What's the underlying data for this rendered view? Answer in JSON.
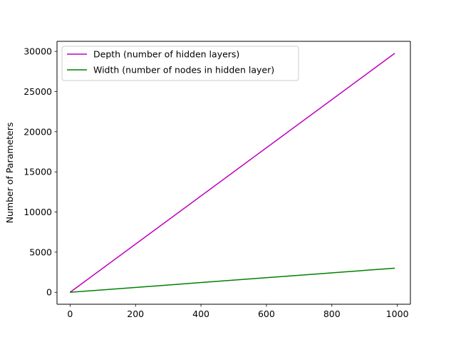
{
  "chart_data": {
    "type": "line",
    "title": "",
    "xlabel": "",
    "ylabel": "Number of Parameters",
    "xlim": [
      -40,
      1040
    ],
    "ylim": [
      -1487,
      31257
    ],
    "xticks": [
      0,
      200,
      400,
      600,
      800,
      1000
    ],
    "yticks": [
      0,
      5000,
      10000,
      15000,
      20000,
      25000,
      30000
    ],
    "xtick_labels": [
      "0",
      "200",
      "400",
      "600",
      "800",
      "1000"
    ],
    "ytick_labels": [
      "0",
      "5000",
      "10000",
      "15000",
      "20000",
      "25000",
      "30000"
    ],
    "grid": false,
    "legend_position": "top-left",
    "series": [
      {
        "name": "Depth (number of hidden layers)",
        "color": "#bf00bf",
        "x": [
          1,
          991
        ],
        "y": [
          30,
          29730
        ]
      },
      {
        "name": "Width (number of nodes in hidden layer)",
        "color": "#008000",
        "x": [
          1,
          991
        ],
        "y": [
          3,
          3000
        ]
      }
    ]
  }
}
